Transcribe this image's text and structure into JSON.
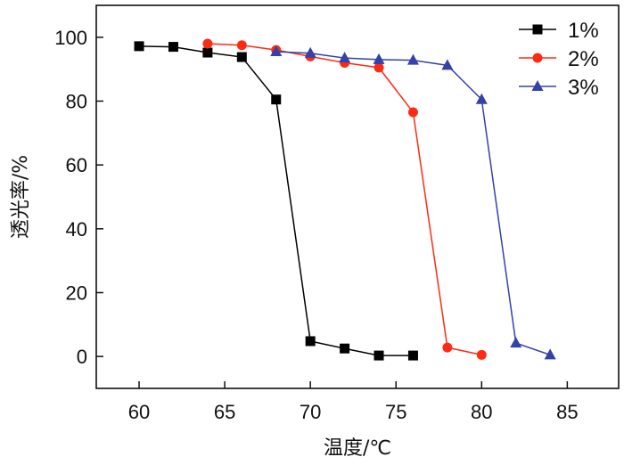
{
  "chart_data": {
    "type": "line",
    "title": "",
    "xlabel": "温度/℃",
    "ylabel": "透光率/%",
    "xlim": [
      57.5,
      88
    ],
    "ylim": [
      -10,
      110
    ],
    "xticks": [
      60,
      65,
      70,
      75,
      80,
      85
    ],
    "yticks": [
      0,
      20,
      40,
      60,
      80,
      100
    ],
    "legend_position": "top-right",
    "series": [
      {
        "name": "1%",
        "color": "#000000",
        "marker": "square",
        "x": [
          60,
          62,
          64,
          66,
          68,
          70,
          72,
          74,
          76
        ],
        "y": [
          97.2,
          97,
          95.2,
          93.8,
          80.5,
          4.8,
          2.5,
          0.3,
          0.3
        ]
      },
      {
        "name": "2%",
        "color": "#ff2a12",
        "marker": "circle",
        "x": [
          64,
          66,
          68,
          70,
          72,
          74,
          76,
          78,
          80
        ],
        "y": [
          98,
          97.5,
          96,
          94,
          92,
          90.5,
          76.5,
          2.8,
          0.5
        ]
      },
      {
        "name": "3%",
        "color": "#3342a8",
        "marker": "triangle",
        "x": [
          68,
          70,
          72,
          74,
          76,
          78,
          80,
          82,
          84
        ],
        "y": [
          95.5,
          95,
          93.5,
          93,
          92.8,
          91.2,
          80.5,
          4.2,
          0.5
        ]
      }
    ]
  }
}
